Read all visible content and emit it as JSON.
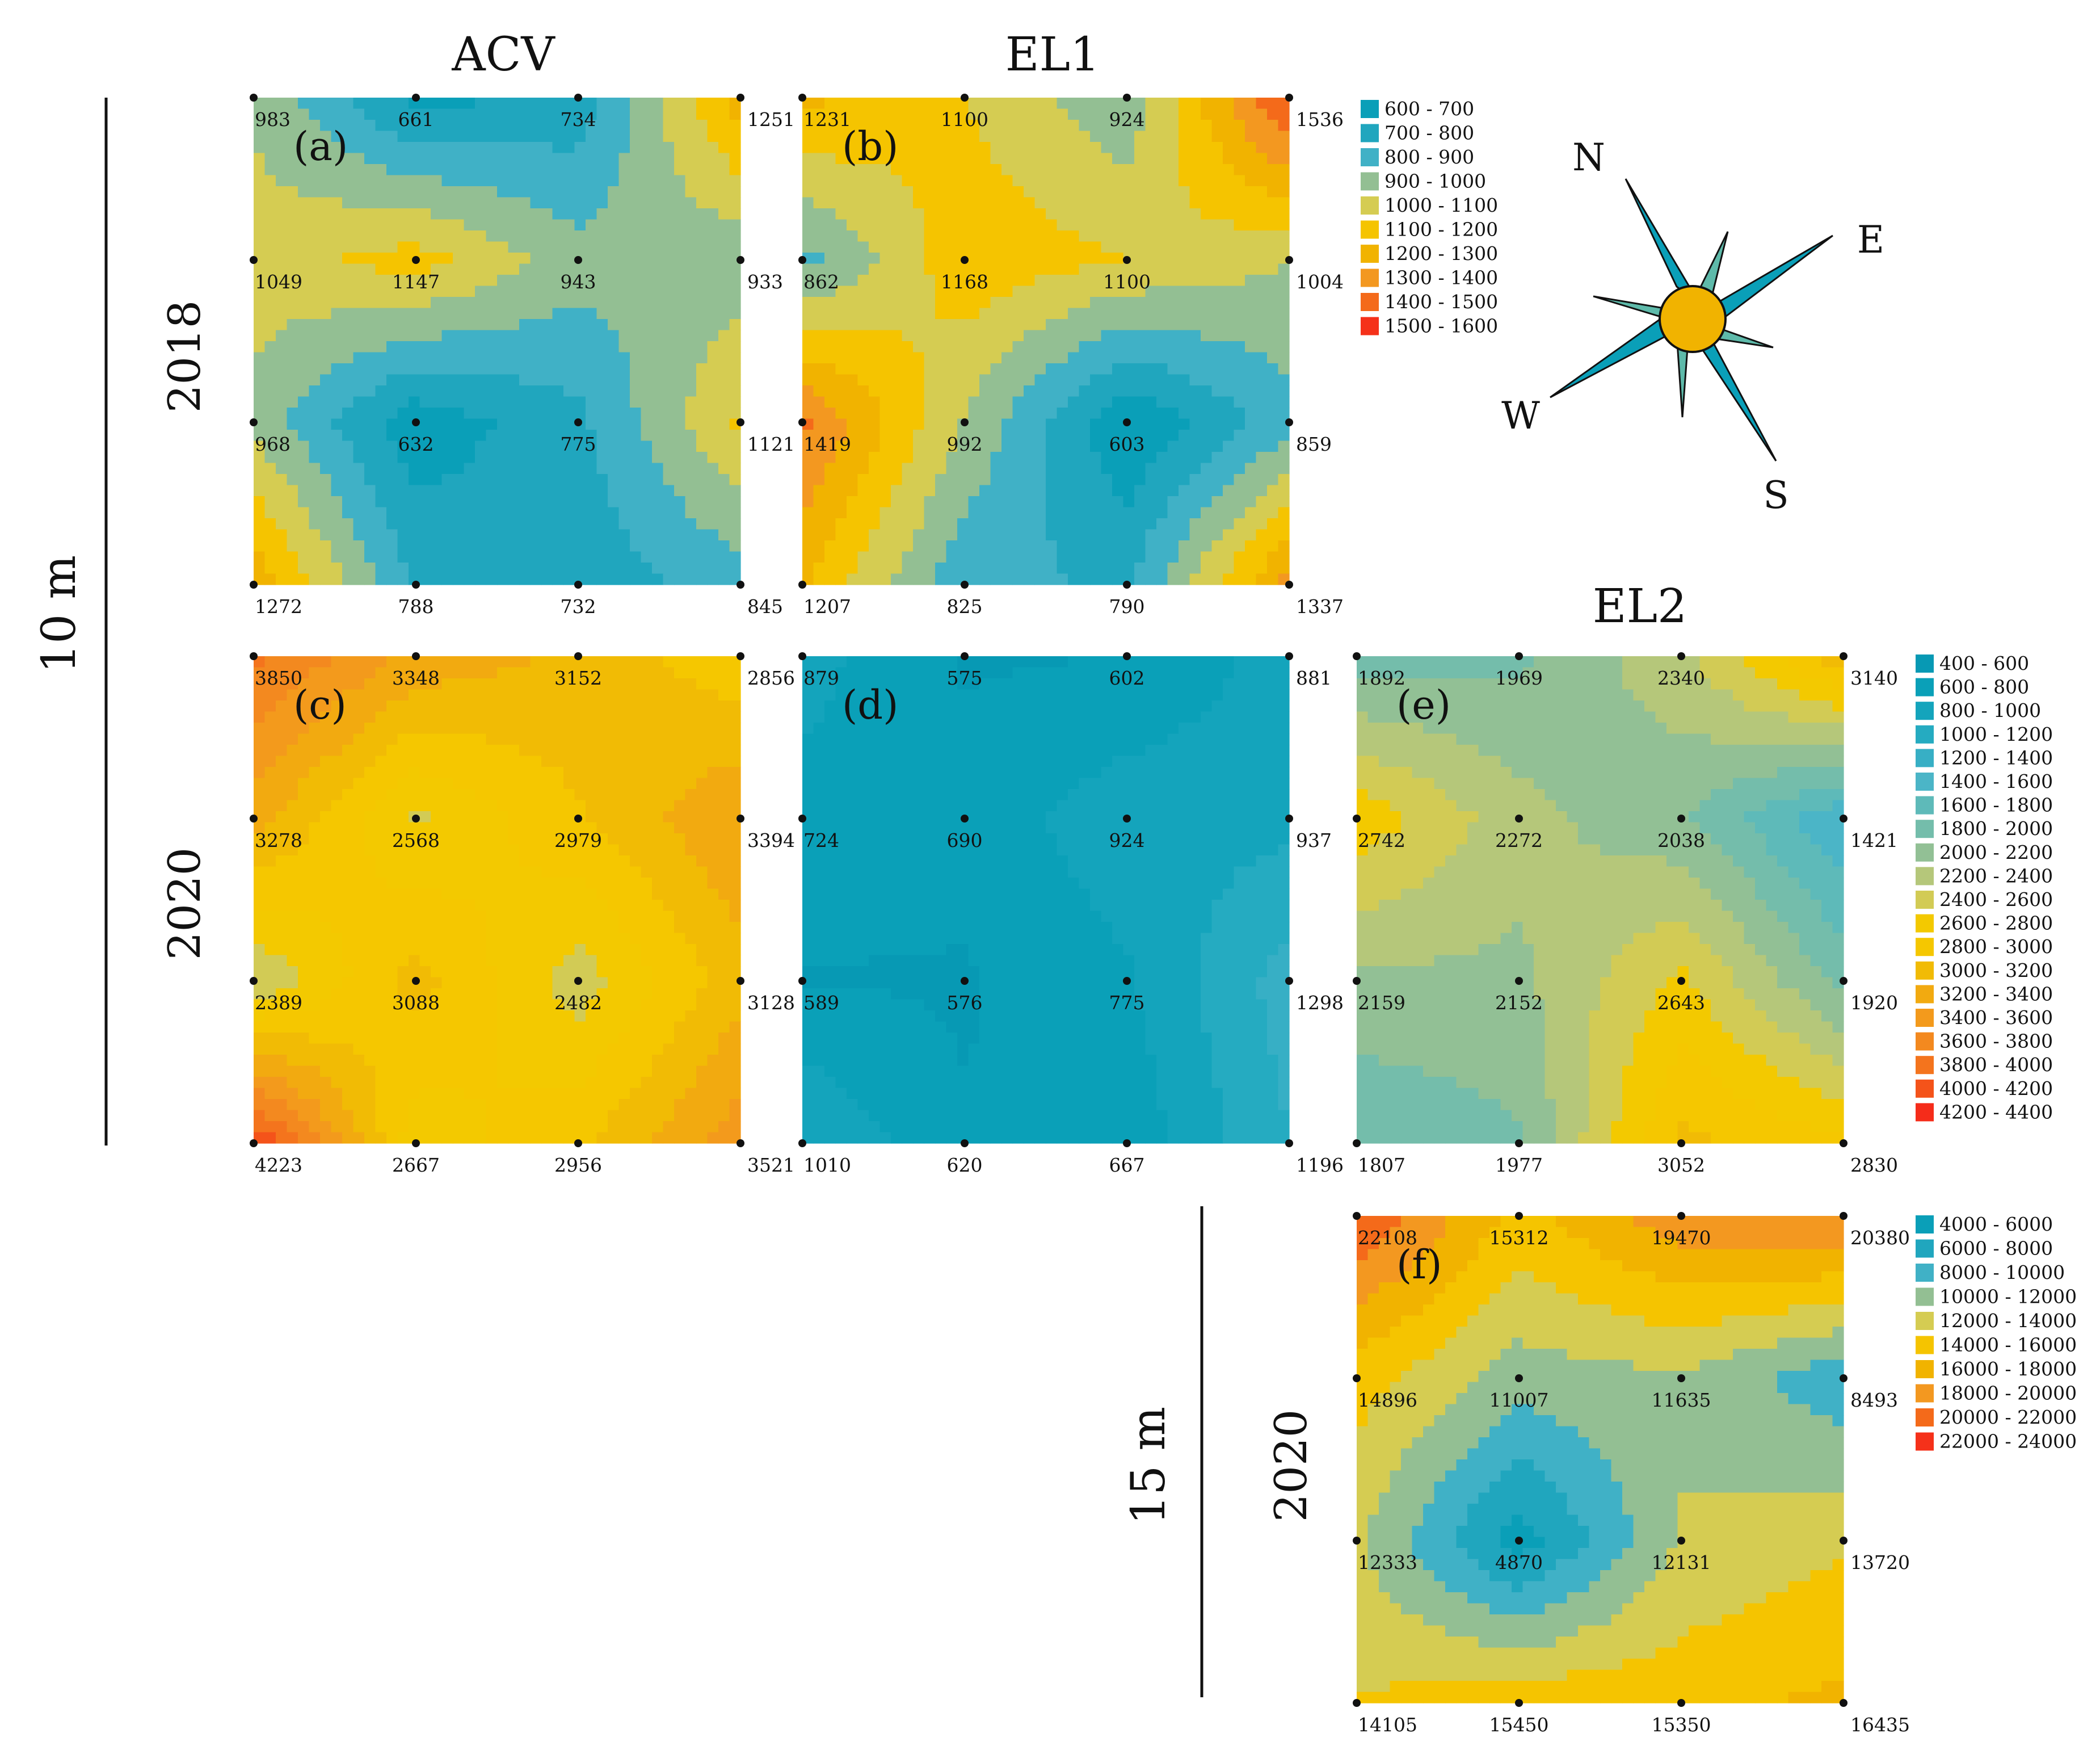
{
  "figure": {
    "column_titles": [
      "ACV",
      "EL1",
      "EL2"
    ],
    "row_years": [
      "2018",
      "2020",
      "2020"
    ],
    "depth_labels": [
      "10 m",
      "15 m"
    ],
    "compass": {
      "north": "N",
      "east": "E",
      "south": "S",
      "west": "W"
    }
  },
  "legends": [
    {
      "id": "legend-1",
      "bins": [
        {
          "label": "600 - 700",
          "color": "#0a9fb8"
        },
        {
          "label": "700 - 800",
          "color": "#20a6be"
        },
        {
          "label": "800 - 900",
          "color": "#40b1c6"
        },
        {
          "label": "900 - 1000",
          "color": "#93bf93"
        },
        {
          "label": "1000 - 1100",
          "color": "#d5cc52"
        },
        {
          "label": "1100 - 1200",
          "color": "#f5c400"
        },
        {
          "label": "1200 - 1300",
          "color": "#f1b300"
        },
        {
          "label": "1300 - 1400",
          "color": "#f39820"
        },
        {
          "label": "1400 - 1500",
          "color": "#f46a1a"
        },
        {
          "label": "1500 - 1600",
          "color": "#f5311a"
        }
      ]
    },
    {
      "id": "legend-2",
      "bins": [
        {
          "label": "400 - 600",
          "color": "#0799b4"
        },
        {
          "label": "600 - 800",
          "color": "#0aa0b8"
        },
        {
          "label": "800 - 1000",
          "color": "#14a4bc"
        },
        {
          "label": "1000 - 1200",
          "color": "#25abc1"
        },
        {
          "label": "1200 - 1400",
          "color": "#37afc5"
        },
        {
          "label": "1400 - 1600",
          "color": "#4bb5c7"
        },
        {
          "label": "1600 - 1800",
          "color": "#5ebab9"
        },
        {
          "label": "1800 - 2000",
          "color": "#74bdab"
        },
        {
          "label": "2000 - 2200",
          "color": "#92c095"
        },
        {
          "label": "2200 - 2400",
          "color": "#b5c77a"
        },
        {
          "label": "2400 - 2600",
          "color": "#d2cb55"
        },
        {
          "label": "2600 - 2800",
          "color": "#f3c900"
        },
        {
          "label": "2800 - 3000",
          "color": "#f5c700"
        },
        {
          "label": "3000 - 3200",
          "color": "#f1bb05"
        },
        {
          "label": "3200 - 3400",
          "color": "#f2aa10"
        },
        {
          "label": "3400 - 3600",
          "color": "#f39a1c"
        },
        {
          "label": "3600 - 3800",
          "color": "#f3891f"
        },
        {
          "label": "3800 - 4000",
          "color": "#f4741d"
        },
        {
          "label": "4000 - 4200",
          "color": "#f4531a"
        },
        {
          "label": "4200 - 4400",
          "color": "#f52c1a"
        }
      ]
    },
    {
      "id": "legend-3",
      "bins": [
        {
          "label": "4000 - 6000",
          "color": "#0a9fb8"
        },
        {
          "label": "6000 - 8000",
          "color": "#20a6be"
        },
        {
          "label": "8000 - 10000",
          "color": "#40b1c6"
        },
        {
          "label": "10000 - 12000",
          "color": "#93bf93"
        },
        {
          "label": "12000 - 14000",
          "color": "#d5cc52"
        },
        {
          "label": "14000 - 16000",
          "color": "#f5c400"
        },
        {
          "label": "16000 - 18000",
          "color": "#f1b300"
        },
        {
          "label": "18000 - 20000",
          "color": "#f39820"
        },
        {
          "label": "20000 - 22000",
          "color": "#f46a1a"
        },
        {
          "label": "22000 - 24000",
          "color": "#f5311a"
        }
      ]
    }
  ],
  "chart_data": [
    {
      "type": "heatmap",
      "panel": "(a)",
      "column": "ACV",
      "year": "2018",
      "depth": "10 m",
      "x": [
        0,
        1,
        2,
        3
      ],
      "y": [
        0,
        1,
        2,
        3
      ],
      "legend": "legend-1",
      "z": [
        [
          983,
          661,
          734,
          1251
        ],
        [
          1049,
          1147,
          943,
          933
        ],
        [
          968,
          632,
          775,
          1121
        ],
        [
          1272,
          788,
          732,
          845
        ]
      ]
    },
    {
      "type": "heatmap",
      "panel": "(b)",
      "column": "EL1",
      "year": "2018",
      "depth": "10 m",
      "x": [
        0,
        1,
        2,
        3
      ],
      "y": [
        0,
        1,
        2,
        3
      ],
      "legend": "legend-1",
      "z": [
        [
          1231,
          1100,
          924,
          1536
        ],
        [
          862,
          1168,
          1100,
          1004
        ],
        [
          1419,
          992,
          603,
          859
        ],
        [
          1207,
          825,
          790,
          1337
        ]
      ]
    },
    {
      "type": "heatmap",
      "panel": "(c)",
      "column": "ACV",
      "year": "2020",
      "depth": "10 m",
      "x": [
        0,
        1,
        2,
        3
      ],
      "y": [
        0,
        1,
        2,
        3
      ],
      "legend": "legend-2",
      "z": [
        [
          3850,
          3348,
          3152,
          2856
        ],
        [
          3278,
          2568,
          2979,
          3394
        ],
        [
          2389,
          3088,
          2482,
          3128
        ],
        [
          4223,
          2667,
          2956,
          3521
        ]
      ]
    },
    {
      "type": "heatmap",
      "panel": "(d)",
      "column": "EL1",
      "year": "2020",
      "depth": "10 m",
      "x": [
        0,
        1,
        2,
        3
      ],
      "y": [
        0,
        1,
        2,
        3
      ],
      "legend": "legend-2",
      "z": [
        [
          879,
          575,
          602,
          881
        ],
        [
          724,
          690,
          924,
          937
        ],
        [
          589,
          576,
          775,
          1298
        ],
        [
          1010,
          620,
          667,
          1196
        ]
      ]
    },
    {
      "type": "heatmap",
      "panel": "(e)",
      "column": "EL2",
      "year": "2020",
      "depth": "10 m",
      "x": [
        0,
        1,
        2,
        3
      ],
      "y": [
        0,
        1,
        2,
        3
      ],
      "legend": "legend-2",
      "z": [
        [
          1892,
          1969,
          2340,
          3140
        ],
        [
          2742,
          2272,
          2038,
          1421
        ],
        [
          2159,
          2152,
          2643,
          1920
        ],
        [
          1807,
          1977,
          3052,
          2830
        ]
      ]
    },
    {
      "type": "heatmap",
      "panel": "(f)",
      "column": "EL2",
      "year": "2020",
      "depth": "15 m",
      "x": [
        0,
        1,
        2,
        3
      ],
      "y": [
        0,
        1,
        2,
        3
      ],
      "legend": "legend-3",
      "z": [
        [
          22108,
          15312,
          19470,
          20380
        ],
        [
          14896,
          11007,
          11635,
          8493
        ],
        [
          12333,
          4870,
          12131,
          13720
        ],
        [
          14105,
          15450,
          15350,
          16435
        ]
      ]
    }
  ]
}
